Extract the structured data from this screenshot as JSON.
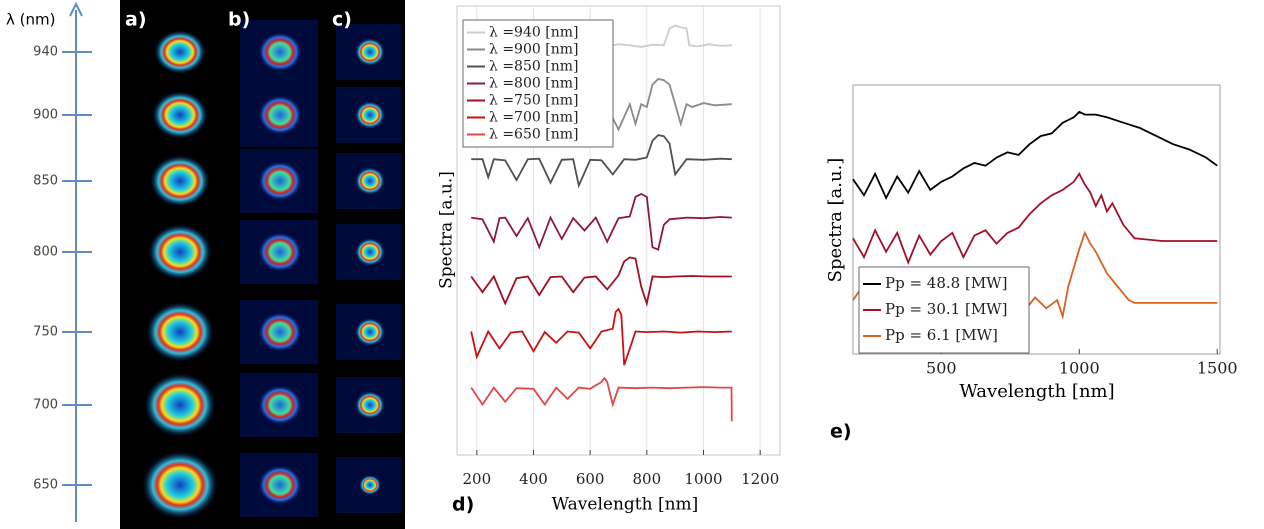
{
  "figure": {
    "wavelength_axis": {
      "label": "λ (nm)",
      "ticks": [
        940,
        900,
        850,
        800,
        750,
        700,
        650
      ]
    },
    "panels": [
      "a)",
      "b)",
      "c)"
    ]
  },
  "chart_data": [
    {
      "type": "line",
      "panel_label": "d)",
      "xlabel": "Wavelength [nm]",
      "ylabel": "Spectra [a.u.]",
      "xlim": [
        130,
        1270
      ],
      "ylim": [
        0,
        8
      ],
      "xticks": [
        200,
        400,
        600,
        800,
        1000,
        1200
      ],
      "grid": true,
      "legend": "upper left",
      "series": [
        {
          "name": "λ =940 [nm]",
          "color": "#cfccc6",
          "x": [
            620,
            660,
            700,
            740,
            780,
            820,
            860,
            880,
            900,
            920,
            940,
            950,
            980,
            1020,
            1060,
            1100
          ],
          "values": [
            7.3,
            7.28,
            7.32,
            7.3,
            7.27,
            7.31,
            7.3,
            7.6,
            7.65,
            7.62,
            7.6,
            7.3,
            7.28,
            7.32,
            7.29,
            7.3
          ]
        },
        {
          "name": "λ =900 [nm]",
          "color": "#8a8a8a",
          "x": [
            180,
            620,
            660,
            700,
            740,
            760,
            780,
            800,
            820,
            840,
            860,
            880,
            900,
            920,
            940,
            960,
            1000,
            1040,
            1100
          ],
          "values": [
            6.25,
            6.25,
            6.2,
            5.8,
            6.25,
            5.9,
            6.25,
            6.2,
            6.6,
            6.7,
            6.68,
            6.6,
            6.25,
            5.9,
            6.25,
            6.2,
            6.27,
            6.23,
            6.25
          ]
        },
        {
          "name": "λ =850 [nm]",
          "color": "#505050",
          "x": [
            180,
            220,
            240,
            260,
            300,
            340,
            380,
            420,
            460,
            500,
            540,
            560,
            600,
            640,
            680,
            720,
            760,
            800,
            820,
            840,
            860,
            880,
            900,
            940,
            1000,
            1060,
            1100
          ],
          "values": [
            5.27,
            5.27,
            4.95,
            5.27,
            5.25,
            4.9,
            5.27,
            5.28,
            4.85,
            5.26,
            5.27,
            4.8,
            5.26,
            5.25,
            5.0,
            5.27,
            5.26,
            5.3,
            5.6,
            5.7,
            5.68,
            5.55,
            5.0,
            5.27,
            5.26,
            5.28,
            5.27
          ]
        },
        {
          "name": "λ =800 [nm]",
          "color": "#8b1a3a",
          "x": [
            180,
            220,
            260,
            280,
            300,
            340,
            380,
            420,
            460,
            500,
            540,
            580,
            620,
            660,
            700,
            740,
            760,
            780,
            800,
            820,
            840,
            860,
            880,
            940,
            1000,
            1060,
            1100
          ],
          "values": [
            4.23,
            4.2,
            3.8,
            4.22,
            4.23,
            3.9,
            4.22,
            3.7,
            4.23,
            3.85,
            4.22,
            4.0,
            4.23,
            3.8,
            4.22,
            4.25,
            4.6,
            4.65,
            4.6,
            3.7,
            3.66,
            4.1,
            4.2,
            4.23,
            4.22,
            4.24,
            4.23
          ]
        },
        {
          "name": "λ =750 [nm]",
          "color": "#a01020",
          "x": [
            180,
            220,
            260,
            300,
            340,
            380,
            420,
            460,
            500,
            540,
            580,
            620,
            660,
            700,
            720,
            740,
            760,
            780,
            800,
            820,
            860,
            900,
            960,
            1020,
            1100
          ],
          "values": [
            3.18,
            2.9,
            3.18,
            2.7,
            3.15,
            3.18,
            2.85,
            3.17,
            3.18,
            2.9,
            3.16,
            3.18,
            2.95,
            3.2,
            3.45,
            3.52,
            3.5,
            3.0,
            2.7,
            3.18,
            3.17,
            3.18,
            3.19,
            3.18,
            3.18
          ]
        },
        {
          "name": "λ =700 [nm]",
          "color": "#c81212",
          "x": [
            180,
            200,
            240,
            280,
            320,
            360,
            400,
            440,
            480,
            520,
            560,
            600,
            640,
            680,
            690,
            700,
            710,
            720,
            760,
            800,
            860,
            920,
            980,
            1040,
            1100
          ],
          "values": [
            2.2,
            1.75,
            2.2,
            1.9,
            2.18,
            2.2,
            1.85,
            2.19,
            2.0,
            2.2,
            2.18,
            1.9,
            2.2,
            2.25,
            2.55,
            2.6,
            2.5,
            1.6,
            2.2,
            2.19,
            2.2,
            2.18,
            2.2,
            2.19,
            2.2
          ]
        },
        {
          "name": "λ =650 [nm]",
          "color": "#e04848",
          "x": [
            180,
            220,
            260,
            300,
            340,
            400,
            440,
            480,
            520,
            560,
            600,
            640,
            650,
            660,
            680,
            700,
            760,
            820,
            880,
            940,
            1000,
            1060,
            1099,
            1100
          ],
          "values": [
            1.2,
            0.9,
            1.2,
            0.95,
            1.19,
            1.18,
            0.9,
            1.2,
            1.0,
            1.2,
            1.18,
            1.3,
            1.37,
            1.3,
            0.9,
            1.2,
            1.19,
            1.2,
            1.19,
            1.2,
            1.21,
            1.2,
            1.2,
            0.6
          ]
        }
      ]
    },
    {
      "type": "line",
      "panel_label": "e)",
      "xlabel": "Wavelength [nm]",
      "ylabel": "Spectra [a.u.]",
      "xlim": [
        180,
        1510
      ],
      "ylim": [
        0,
        10
      ],
      "xticks": [
        500,
        1000,
        1500
      ],
      "grid": false,
      "legend": "lower left",
      "series": [
        {
          "name": "Pp = 48.8 [MW]",
          "color": "#000000",
          "x": [
            180,
            220,
            260,
            300,
            340,
            380,
            420,
            460,
            500,
            540,
            580,
            620,
            660,
            700,
            740,
            780,
            820,
            860,
            900,
            940,
            980,
            1000,
            1020,
            1060,
            1100,
            1160,
            1220,
            1280,
            1340,
            1400,
            1460,
            1500
          ],
          "values": [
            6.5,
            5.9,
            6.7,
            5.8,
            6.6,
            6.0,
            6.8,
            6.1,
            6.4,
            6.6,
            6.9,
            7.1,
            7.0,
            7.3,
            7.5,
            7.4,
            7.8,
            8.1,
            8.2,
            8.6,
            8.8,
            9.0,
            8.9,
            8.9,
            8.8,
            8.6,
            8.4,
            8.1,
            7.8,
            7.6,
            7.3,
            7.0
          ]
        },
        {
          "name": "Pp = 30.1 [MW]",
          "color": "#a0102a",
          "x": [
            180,
            220,
            260,
            300,
            340,
            380,
            420,
            460,
            500,
            540,
            580,
            620,
            660,
            700,
            740,
            780,
            820,
            860,
            900,
            940,
            980,
            1000,
            1020,
            1040,
            1060,
            1080,
            1100,
            1120,
            1160,
            1200,
            1300,
            1400,
            1500
          ],
          "values": [
            4.3,
            3.6,
            4.6,
            3.8,
            4.5,
            3.4,
            4.4,
            3.7,
            4.2,
            4.5,
            3.6,
            4.4,
            4.6,
            4.1,
            4.5,
            4.7,
            5.2,
            5.6,
            5.9,
            6.1,
            6.4,
            6.7,
            6.3,
            6.0,
            5.5,
            5.9,
            5.3,
            5.6,
            4.8,
            4.3,
            4.2,
            4.2,
            4.2
          ]
        },
        {
          "name": "Pp = 6.1 [MW]",
          "color": "#d86020",
          "x": [
            180,
            200,
            240,
            280,
            320,
            360,
            400,
            440,
            480,
            520,
            560,
            600,
            640,
            680,
            720,
            760,
            800,
            840,
            880,
            920,
            940,
            960,
            1000,
            1020,
            1040,
            1060,
            1100,
            1140,
            1180,
            1200,
            1300,
            1400,
            1500
          ],
          "values": [
            2.0,
            2.3,
            1.7,
            2.2,
            1.5,
            2.1,
            1.8,
            2.3,
            1.6,
            2.2,
            1.7,
            2.1,
            1.5,
            2.2,
            1.8,
            2.0,
            1.6,
            2.1,
            1.7,
            2.0,
            1.4,
            2.5,
            3.9,
            4.5,
            4.1,
            3.8,
            3.0,
            2.5,
            2.0,
            1.9,
            1.9,
            1.9,
            1.9
          ]
        }
      ]
    }
  ]
}
